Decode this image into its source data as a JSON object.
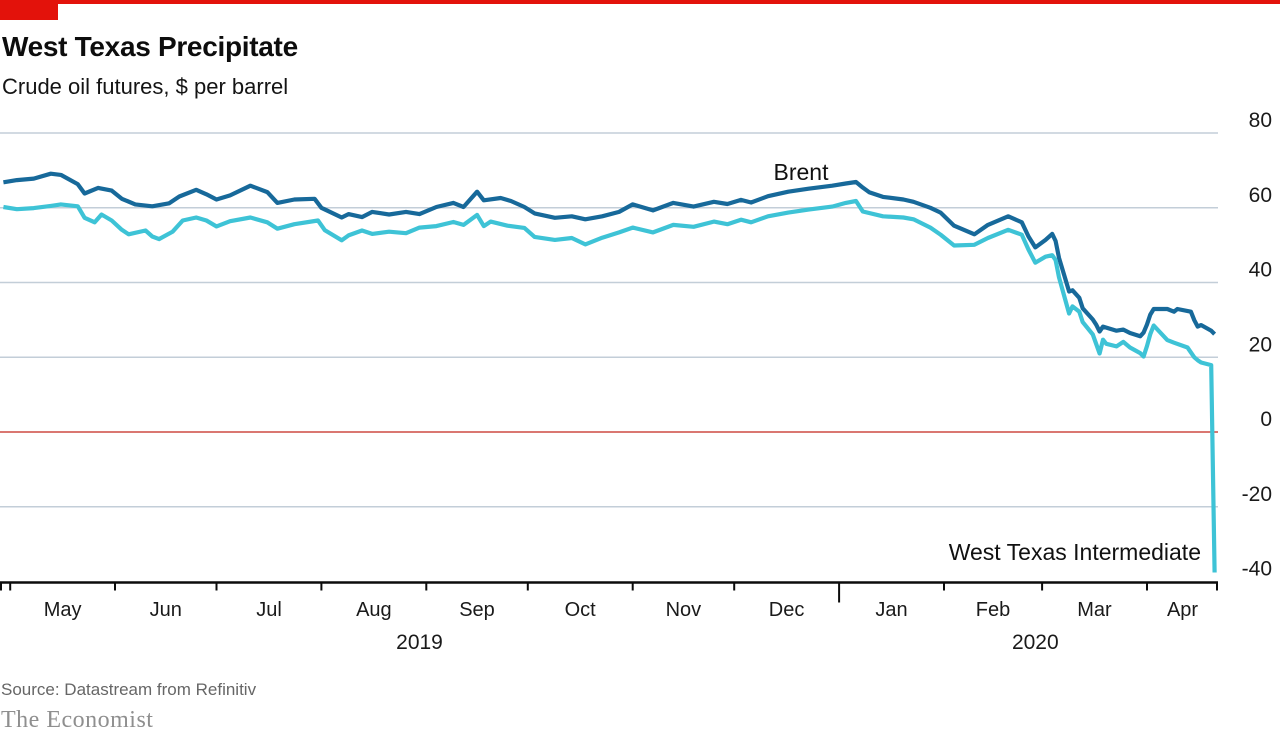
{
  "header": {
    "title": "West Texas Precipitate",
    "subtitle": "Crude oil futures, $ per barrel"
  },
  "footer": {
    "source": "Source: Datastream from Refinitiv",
    "publication": "The Economist"
  },
  "colors": {
    "brand_red": "#e3120b",
    "brent": "#17699a",
    "wti": "#3ec3d6",
    "gridline": "#c3ced8",
    "zero_line": "#cd4a42",
    "axis": "#0c0c0c",
    "tick_text": "#1a1a1a"
  },
  "chart_data": {
    "type": "line",
    "title": "West Texas Precipitate",
    "subtitle": "Crude oil futures, $ per barrel",
    "ylabel": "$ per barrel",
    "ylim": [
      -40,
      80
    ],
    "y_ticks": [
      80,
      60,
      40,
      20,
      0,
      -20,
      -40
    ],
    "zero_line_value": 0,
    "grid": true,
    "legend_position": "inline-labels",
    "x_range": [
      "2019-04-28",
      "2020-04-22"
    ],
    "month_ticks": [
      {
        "date": "2019-05-01",
        "label": "May",
        "long": false
      },
      {
        "date": "2019-06-01",
        "label": "Jun",
        "long": false
      },
      {
        "date": "2019-07-01",
        "label": "Jul",
        "long": false
      },
      {
        "date": "2019-08-01",
        "label": "Aug",
        "long": false
      },
      {
        "date": "2019-09-01",
        "label": "Sep",
        "long": false
      },
      {
        "date": "2019-10-01",
        "label": "Oct",
        "long": false
      },
      {
        "date": "2019-11-01",
        "label": "Nov",
        "long": false
      },
      {
        "date": "2019-12-01",
        "label": "Dec",
        "long": false
      },
      {
        "date": "2020-01-01",
        "label": "Jan",
        "long": true
      },
      {
        "date": "2020-02-01",
        "label": "Feb",
        "long": false
      },
      {
        "date": "2020-03-01",
        "label": "Mar",
        "long": false
      },
      {
        "date": "2020-04-01",
        "label": "Apr",
        "long": false
      }
    ],
    "year_labels": [
      {
        "label": "2019",
        "anchor_date": "2019-08-30"
      },
      {
        "label": "2020",
        "anchor_date": "2020-02-28"
      }
    ],
    "series_labels": {
      "brent": "Brent",
      "wti": "West Texas Intermediate"
    },
    "series": [
      {
        "name": "Brent",
        "color_key": "brent",
        "points": [
          [
            "2019-04-29",
            66.8
          ],
          [
            "2019-05-03",
            67.4
          ],
          [
            "2019-05-08",
            67.8
          ],
          [
            "2019-05-13",
            69.1
          ],
          [
            "2019-05-16",
            68.8
          ],
          [
            "2019-05-21",
            66.3
          ],
          [
            "2019-05-23",
            63.8
          ],
          [
            "2019-05-27",
            65.3
          ],
          [
            "2019-05-31",
            64.6
          ],
          [
            "2019-06-03",
            62.4
          ],
          [
            "2019-06-07",
            60.9
          ],
          [
            "2019-06-12",
            60.4
          ],
          [
            "2019-06-17",
            61.2
          ],
          [
            "2019-06-20",
            63.0
          ],
          [
            "2019-06-25",
            64.8
          ],
          [
            "2019-06-28",
            63.6
          ],
          [
            "2019-07-01",
            62.2
          ],
          [
            "2019-07-05",
            63.3
          ],
          [
            "2019-07-11",
            65.9
          ],
          [
            "2019-07-16",
            64.2
          ],
          [
            "2019-07-19",
            61.3
          ],
          [
            "2019-07-24",
            62.2
          ],
          [
            "2019-07-30",
            62.4
          ],
          [
            "2019-08-01",
            60.0
          ],
          [
            "2019-08-07",
            57.4
          ],
          [
            "2019-08-09",
            58.3
          ],
          [
            "2019-08-13",
            57.5
          ],
          [
            "2019-08-16",
            58.9
          ],
          [
            "2019-08-21",
            58.2
          ],
          [
            "2019-08-26",
            58.9
          ],
          [
            "2019-08-30",
            58.3
          ],
          [
            "2019-09-04",
            60.2
          ],
          [
            "2019-09-09",
            61.3
          ],
          [
            "2019-09-12",
            60.2
          ],
          [
            "2019-09-16",
            64.3
          ],
          [
            "2019-09-18",
            62.0
          ],
          [
            "2019-09-23",
            62.6
          ],
          [
            "2019-09-26",
            61.8
          ],
          [
            "2019-09-30",
            60.2
          ],
          [
            "2019-10-03",
            58.5
          ],
          [
            "2019-10-09",
            57.3
          ],
          [
            "2019-10-14",
            57.7
          ],
          [
            "2019-10-18",
            56.9
          ],
          [
            "2019-10-23",
            57.7
          ],
          [
            "2019-10-28",
            58.9
          ],
          [
            "2019-11-01",
            60.9
          ],
          [
            "2019-11-07",
            59.3
          ],
          [
            "2019-11-13",
            61.3
          ],
          [
            "2019-11-19",
            60.3
          ],
          [
            "2019-11-25",
            61.6
          ],
          [
            "2019-11-29",
            61.0
          ],
          [
            "2019-12-03",
            62.1
          ],
          [
            "2019-12-06",
            61.4
          ],
          [
            "2019-12-11",
            63.1
          ],
          [
            "2019-12-17",
            64.3
          ],
          [
            "2019-12-23",
            65.1
          ],
          [
            "2019-12-30",
            65.9
          ],
          [
            "2020-01-03",
            66.5
          ],
          [
            "2020-01-06",
            66.9
          ],
          [
            "2020-01-08",
            65.4
          ],
          [
            "2020-01-10",
            64.1
          ],
          [
            "2020-01-14",
            62.9
          ],
          [
            "2020-01-20",
            62.2
          ],
          [
            "2020-01-23",
            61.6
          ],
          [
            "2020-01-28",
            60.0
          ],
          [
            "2020-01-31",
            58.7
          ],
          [
            "2020-02-04",
            55.2
          ],
          [
            "2020-02-10",
            52.9
          ],
          [
            "2020-02-14",
            55.4
          ],
          [
            "2020-02-20",
            57.7
          ],
          [
            "2020-02-24",
            56.1
          ],
          [
            "2020-02-26",
            52.3
          ],
          [
            "2020-02-28",
            49.4
          ],
          [
            "2020-03-02",
            51.4
          ],
          [
            "2020-03-04",
            53.0
          ],
          [
            "2020-03-05",
            51.1
          ],
          [
            "2020-03-06",
            46.6
          ],
          [
            "2020-03-09",
            37.6
          ],
          [
            "2020-03-10",
            37.9
          ],
          [
            "2020-03-12",
            35.9
          ],
          [
            "2020-03-13",
            33.1
          ],
          [
            "2020-03-16",
            30.1
          ],
          [
            "2020-03-17",
            28.7
          ],
          [
            "2020-03-18",
            26.9
          ],
          [
            "2020-03-19",
            28.2
          ],
          [
            "2020-03-23",
            27.1
          ],
          [
            "2020-03-25",
            27.4
          ],
          [
            "2020-03-27",
            26.5
          ],
          [
            "2020-03-30",
            25.6
          ],
          [
            "2020-03-31",
            26.6
          ],
          [
            "2020-04-01",
            28.8
          ],
          [
            "2020-04-02",
            31.4
          ],
          [
            "2020-04-03",
            32.9
          ],
          [
            "2020-04-07",
            32.9
          ],
          [
            "2020-04-09",
            32.2
          ],
          [
            "2020-04-10",
            32.9
          ],
          [
            "2020-04-14",
            32.2
          ],
          [
            "2020-04-15",
            29.9
          ],
          [
            "2020-04-16",
            28.2
          ],
          [
            "2020-04-17",
            28.6
          ],
          [
            "2020-04-20",
            27.1
          ],
          [
            "2020-04-21",
            26.2
          ]
        ]
      },
      {
        "name": "West Texas Intermediate",
        "color_key": "wti",
        "points": [
          [
            "2019-04-29",
            60.2
          ],
          [
            "2019-05-03",
            59.6
          ],
          [
            "2019-05-08",
            59.9
          ],
          [
            "2019-05-13",
            60.5
          ],
          [
            "2019-05-16",
            60.9
          ],
          [
            "2019-05-21",
            60.4
          ],
          [
            "2019-05-23",
            57.3
          ],
          [
            "2019-05-26",
            56.1
          ],
          [
            "2019-05-28",
            58.2
          ],
          [
            "2019-05-31",
            56.6
          ],
          [
            "2019-06-03",
            54.1
          ],
          [
            "2019-06-05",
            52.9
          ],
          [
            "2019-06-10",
            53.9
          ],
          [
            "2019-06-12",
            52.3
          ],
          [
            "2019-06-14",
            51.6
          ],
          [
            "2019-06-18",
            53.6
          ],
          [
            "2019-06-21",
            56.6
          ],
          [
            "2019-06-25",
            57.4
          ],
          [
            "2019-06-28",
            56.6
          ],
          [
            "2019-07-01",
            55.0
          ],
          [
            "2019-07-05",
            56.4
          ],
          [
            "2019-07-11",
            57.4
          ],
          [
            "2019-07-16",
            56.1
          ],
          [
            "2019-07-19",
            54.4
          ],
          [
            "2019-07-24",
            55.6
          ],
          [
            "2019-07-31",
            56.6
          ],
          [
            "2019-08-02",
            54.0
          ],
          [
            "2019-08-07",
            51.3
          ],
          [
            "2019-08-09",
            52.6
          ],
          [
            "2019-08-13",
            53.9
          ],
          [
            "2019-08-16",
            53.0
          ],
          [
            "2019-08-21",
            53.6
          ],
          [
            "2019-08-26",
            53.2
          ],
          [
            "2019-08-30",
            54.7
          ],
          [
            "2019-09-04",
            55.1
          ],
          [
            "2019-09-09",
            56.2
          ],
          [
            "2019-09-12",
            55.4
          ],
          [
            "2019-09-16",
            58.1
          ],
          [
            "2019-09-18",
            55.1
          ],
          [
            "2019-09-20",
            56.3
          ],
          [
            "2019-09-25",
            55.2
          ],
          [
            "2019-09-30",
            54.6
          ],
          [
            "2019-10-03",
            52.2
          ],
          [
            "2019-10-09",
            51.4
          ],
          [
            "2019-10-14",
            51.9
          ],
          [
            "2019-10-18",
            50.2
          ],
          [
            "2019-10-23",
            52.0
          ],
          [
            "2019-10-28",
            53.4
          ],
          [
            "2019-11-01",
            54.7
          ],
          [
            "2019-11-07",
            53.4
          ],
          [
            "2019-11-13",
            55.4
          ],
          [
            "2019-11-19",
            54.9
          ],
          [
            "2019-11-25",
            56.3
          ],
          [
            "2019-11-29",
            55.6
          ],
          [
            "2019-12-03",
            56.8
          ],
          [
            "2019-12-06",
            56.1
          ],
          [
            "2019-12-11",
            57.7
          ],
          [
            "2019-12-17",
            58.7
          ],
          [
            "2019-12-23",
            59.5
          ],
          [
            "2019-12-30",
            60.3
          ],
          [
            "2020-01-03",
            61.3
          ],
          [
            "2020-01-06",
            61.8
          ],
          [
            "2020-01-08",
            59.0
          ],
          [
            "2020-01-14",
            57.7
          ],
          [
            "2020-01-20",
            57.4
          ],
          [
            "2020-01-23",
            56.9
          ],
          [
            "2020-01-28",
            54.7
          ],
          [
            "2020-01-31",
            52.8
          ],
          [
            "2020-02-04",
            49.9
          ],
          [
            "2020-02-10",
            50.1
          ],
          [
            "2020-02-14",
            51.9
          ],
          [
            "2020-02-20",
            54.1
          ],
          [
            "2020-02-24",
            52.8
          ],
          [
            "2020-02-26",
            48.8
          ],
          [
            "2020-02-28",
            45.3
          ],
          [
            "2020-03-02",
            46.9
          ],
          [
            "2020-03-04",
            47.3
          ],
          [
            "2020-03-05",
            46.0
          ],
          [
            "2020-03-06",
            41.4
          ],
          [
            "2020-03-09",
            31.7
          ],
          [
            "2020-03-10",
            33.6
          ],
          [
            "2020-03-12",
            32.2
          ],
          [
            "2020-03-13",
            29.4
          ],
          [
            "2020-03-16",
            26.1
          ],
          [
            "2020-03-18",
            21.0
          ],
          [
            "2020-03-19",
            24.7
          ],
          [
            "2020-03-20",
            23.6
          ],
          [
            "2020-03-23",
            22.9
          ],
          [
            "2020-03-25",
            24.1
          ],
          [
            "2020-03-27",
            22.6
          ],
          [
            "2020-03-30",
            21.1
          ],
          [
            "2020-03-31",
            20.2
          ],
          [
            "2020-04-01",
            23.0
          ],
          [
            "2020-04-02",
            26.2
          ],
          [
            "2020-04-03",
            28.5
          ],
          [
            "2020-04-07",
            24.6
          ],
          [
            "2020-04-09",
            23.9
          ],
          [
            "2020-04-13",
            22.6
          ],
          [
            "2020-04-15",
            20.0
          ],
          [
            "2020-04-16",
            19.2
          ],
          [
            "2020-04-17",
            18.6
          ],
          [
            "2020-04-20",
            17.9
          ],
          [
            "2020-04-21",
            -37.6
          ]
        ]
      }
    ]
  }
}
